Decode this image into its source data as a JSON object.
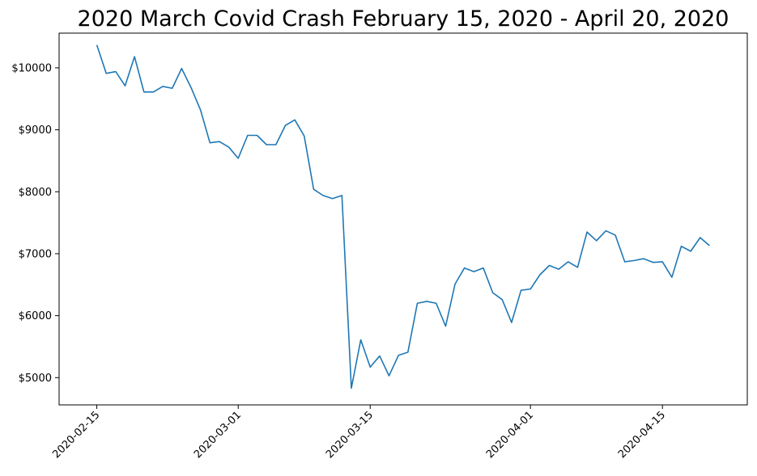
{
  "chart_data": {
    "type": "line",
    "title": "2020 March Covid Crash February 15, 2020 - April 20, 2020",
    "xlabel": "",
    "ylabel": "",
    "line_color": "#1f77b4",
    "grid": false,
    "legend": "none",
    "xlim": [
      "2020-02-11",
      "2020-04-24"
    ],
    "ylim": [
      4560,
      10560
    ],
    "x_ticks": [
      "2020-02-15",
      "2020-03-01",
      "2020-03-15",
      "2020-04-01",
      "2020-04-15"
    ],
    "y_ticks": [
      5000,
      6000,
      7000,
      8000,
      9000,
      10000
    ],
    "y_tick_labels": [
      "$5000",
      "$6000",
      "$7000",
      "$8000",
      "$9000",
      "$10000"
    ],
    "series": [
      {
        "x": [
          "2020-02-15",
          "2020-02-16",
          "2020-02-17",
          "2020-02-18",
          "2020-02-19",
          "2020-02-20",
          "2020-02-21",
          "2020-02-22",
          "2020-02-23",
          "2020-02-24",
          "2020-02-25",
          "2020-02-26",
          "2020-02-27",
          "2020-02-28",
          "2020-02-29",
          "2020-03-01",
          "2020-03-02",
          "2020-03-03",
          "2020-03-04",
          "2020-03-05",
          "2020-03-06",
          "2020-03-07",
          "2020-03-08",
          "2020-03-09",
          "2020-03-10",
          "2020-03-11",
          "2020-03-12",
          "2020-03-13",
          "2020-03-14",
          "2020-03-15",
          "2020-03-16",
          "2020-03-17",
          "2020-03-18",
          "2020-03-19",
          "2020-03-20",
          "2020-03-21",
          "2020-03-22",
          "2020-03-23",
          "2020-03-24",
          "2020-03-25",
          "2020-03-26",
          "2020-03-27",
          "2020-03-28",
          "2020-03-29",
          "2020-03-30",
          "2020-03-31",
          "2020-04-01",
          "2020-04-02",
          "2020-04-03",
          "2020-04-04",
          "2020-04-05",
          "2020-04-06",
          "2020-04-07",
          "2020-04-08",
          "2020-04-09",
          "2020-04-10",
          "2020-04-11",
          "2020-04-12",
          "2020-04-13",
          "2020-04-14",
          "2020-04-15",
          "2020-04-16",
          "2020-04-17",
          "2020-04-18",
          "2020-04-19",
          "2020-04-20"
        ],
        "values": [
          10370,
          9910,
          9940,
          9710,
          10180,
          9610,
          9610,
          9700,
          9670,
          9990,
          9680,
          9320,
          8790,
          8810,
          8720,
          8540,
          8910,
          8910,
          8760,
          8760,
          9070,
          9160,
          8900,
          8040,
          7940,
          7890,
          7940,
          4830,
          5610,
          5170,
          5350,
          5030,
          5360,
          5410,
          6200,
          6230,
          6200,
          5830,
          6510,
          6770,
          6710,
          6770,
          6370,
          6260,
          5890,
          6410,
          6430,
          6660,
          6810,
          6750,
          6870,
          6780,
          7350,
          7210,
          7370,
          7300,
          6870,
          6890,
          6920,
          6860,
          6870,
          6620,
          7120,
          7040,
          7260,
          7130
        ]
      }
    ]
  }
}
